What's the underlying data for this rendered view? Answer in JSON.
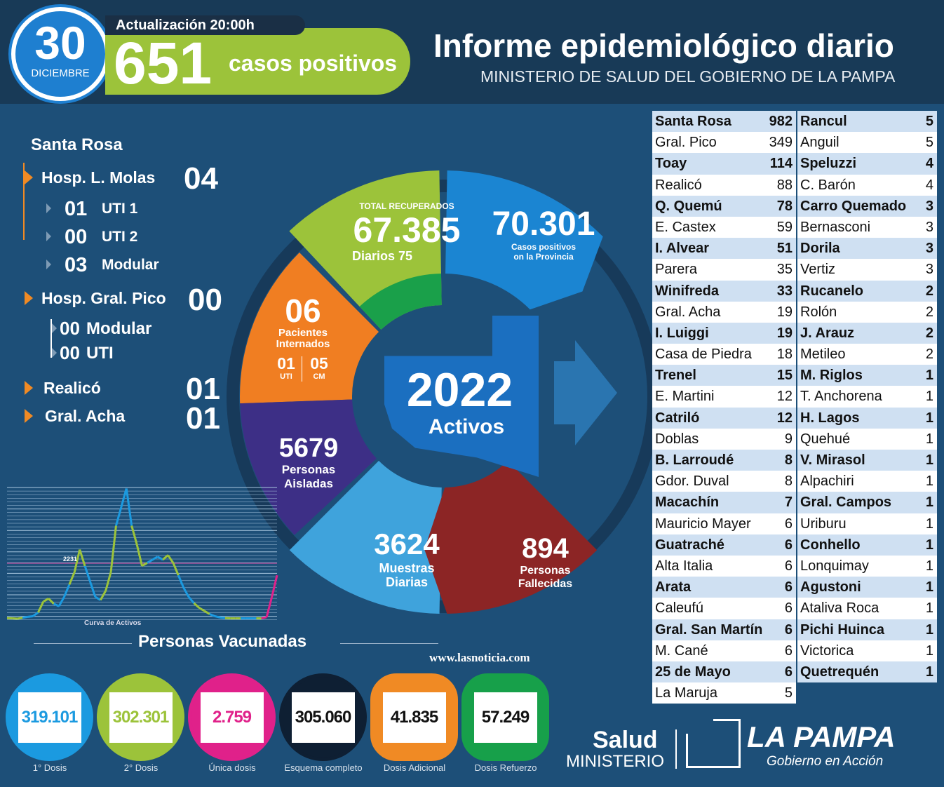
{
  "header": {
    "day": "30",
    "month": "DICIEMBRE",
    "update": "Actualización 20:00h",
    "cases": "651",
    "cases_label": "casos positivos",
    "title": "Informe epidemiológico diario",
    "subtitle": "MINISTERIO DE SALUD DEL GOBIERNO DE LA PAMPA"
  },
  "hospitals": {
    "city": "Santa Rosa",
    "molas": {
      "label": "Hosp. L. Molas",
      "value": "04",
      "items": [
        {
          "n": "01",
          "l": "UTI 1"
        },
        {
          "n": "00",
          "l": "UTI 2"
        },
        {
          "n": "03",
          "l": "Modular"
        }
      ]
    },
    "pico": {
      "label": "Hosp. Gral. Pico",
      "value": "00",
      "items": [
        {
          "n": "00",
          "l": "Modular"
        },
        {
          "n": "00",
          "l": "UTI"
        }
      ]
    },
    "realico": {
      "label": "Realicó",
      "value": "01"
    },
    "acha": {
      "label": "Gral. Acha",
      "value": "01"
    }
  },
  "donut": {
    "recuperados": {
      "caption": "TOTAL RECUPERADOS",
      "value": "67.385",
      "daily": "Diarios 75",
      "color": "#9cc33a"
    },
    "positivos": {
      "value": "70.301",
      "l1": "Casos positivos",
      "l2": "on la Provincia",
      "color": "#1b85d2"
    },
    "internados": {
      "value": "06",
      "l1": "Pacientes",
      "l2": "Internados",
      "uti": "01",
      "uti_l": "UTI",
      "cm": "05",
      "cm_l": "CM",
      "color": "#f07e22"
    },
    "aislados": {
      "value": "5679",
      "l1": "Personas",
      "l2": "Aisladas",
      "color": "#3d2f86"
    },
    "muestras": {
      "value": "3624",
      "l1": "Muestras",
      "l2": "Diarias",
      "color": "#3fa3dc"
    },
    "fallecidos": {
      "value": "894",
      "l1": "Personas",
      "l2": "Fallecidas",
      "color": "#8c2525"
    },
    "activos": {
      "value": "2022",
      "label": "Activos"
    }
  },
  "chart_data": {
    "type": "line",
    "title": "Curva de Activos",
    "annotation": "2231",
    "grid": true,
    "values": [
      20,
      10,
      0,
      30,
      60,
      80,
      200,
      550,
      650,
      480,
      400,
      700,
      1100,
      1500,
      2231,
      1700,
      1200,
      700,
      600,
      900,
      1500,
      3000,
      3600,
      4200,
      3000,
      2400,
      1700,
      1800,
      1900,
      2000,
      1900,
      2050,
      1800,
      1400,
      1000,
      700,
      500,
      350,
      250,
      150,
      80,
      40,
      20,
      10,
      10,
      10,
      10,
      10,
      10,
      10,
      50,
      700,
      1400
    ]
  },
  "vaccines": {
    "title": "Personas Vacunadas",
    "items": [
      {
        "value": "319.101",
        "label": "1° Dosis",
        "color": "#1b9ae0"
      },
      {
        "value": "302.301",
        "label": "2° Dosis",
        "color": "#9cc33a"
      },
      {
        "value": "2.759",
        "label": "Única dosis",
        "color": "#e0218a"
      },
      {
        "value": "305.060",
        "label": "Esquema completo",
        "color": "#0e1f33"
      },
      {
        "value": "41.835",
        "label": "Dosis Adicional",
        "color": "#f08a24"
      },
      {
        "value": "57.249",
        "label": "Dosis Refuerzo",
        "color": "#17a04a"
      }
    ]
  },
  "website": "www.lasnoticia.com",
  "logo": {
    "salud": "Salud",
    "ministerio": "MINISTERIO",
    "province": "LA PAMPA",
    "slogan": "Gobierno en Acción"
  },
  "localities": {
    "left": [
      [
        "Santa Rosa",
        "982"
      ],
      [
        "Gral. Pico",
        "349"
      ],
      [
        "Toay",
        "114"
      ],
      [
        "Realicó",
        "88"
      ],
      [
        "Q. Quemú",
        "78"
      ],
      [
        "E. Castex",
        "59"
      ],
      [
        "I. Alvear",
        "51"
      ],
      [
        "Parera",
        "35"
      ],
      [
        "Winifreda",
        "33"
      ],
      [
        "Gral. Acha",
        "19"
      ],
      [
        "I. Luiggi",
        "19"
      ],
      [
        "Casa de Piedra",
        "18"
      ],
      [
        "Trenel",
        "15"
      ],
      [
        "E. Martini",
        "12"
      ],
      [
        "Catriló",
        "12"
      ],
      [
        "Doblas",
        "9"
      ],
      [
        "B. Larroudé",
        "8"
      ],
      [
        "Gdor. Duval",
        "8"
      ],
      [
        "Macachín",
        "7"
      ],
      [
        "Mauricio Mayer",
        "6"
      ],
      [
        "Guatraché",
        "6"
      ],
      [
        "Alta Italia",
        "6"
      ],
      [
        "Arata",
        "6"
      ],
      [
        "Caleufú",
        "6"
      ],
      [
        "Gral. San Martín",
        "6"
      ],
      [
        "M. Cané",
        "6"
      ],
      [
        "25 de Mayo",
        "6"
      ],
      [
        "La Maruja",
        "5"
      ]
    ],
    "right": [
      [
        "Rancul",
        "5"
      ],
      [
        "Anguil",
        "5"
      ],
      [
        "Speluzzi",
        "4"
      ],
      [
        "C. Barón",
        "4"
      ],
      [
        "Carro Quemado",
        "3"
      ],
      [
        "Bernasconi",
        "3"
      ],
      [
        "Dorila",
        "3"
      ],
      [
        "Vertiz",
        "3"
      ],
      [
        "Rucanelo",
        "2"
      ],
      [
        "Rolón",
        "2"
      ],
      [
        "J. Arauz",
        "2"
      ],
      [
        "Metileo",
        "2"
      ],
      [
        "M. Riglos",
        "1"
      ],
      [
        "T. Anchorena",
        "1"
      ],
      [
        "H. Lagos",
        "1"
      ],
      [
        "Quehué",
        "1"
      ],
      [
        "V. Mirasol",
        "1"
      ],
      [
        "Alpachiri",
        "1"
      ],
      [
        "Gral. Campos",
        "1"
      ],
      [
        "Uriburu",
        "1"
      ],
      [
        "Conhello",
        "1"
      ],
      [
        "Lonquimay",
        "1"
      ],
      [
        "Agustoni",
        "1"
      ],
      [
        "Ataliva Roca",
        "1"
      ],
      [
        "Pichi Huinca",
        "1"
      ],
      [
        "Victorica",
        "1"
      ],
      [
        "Quetrequén",
        "1"
      ]
    ]
  }
}
